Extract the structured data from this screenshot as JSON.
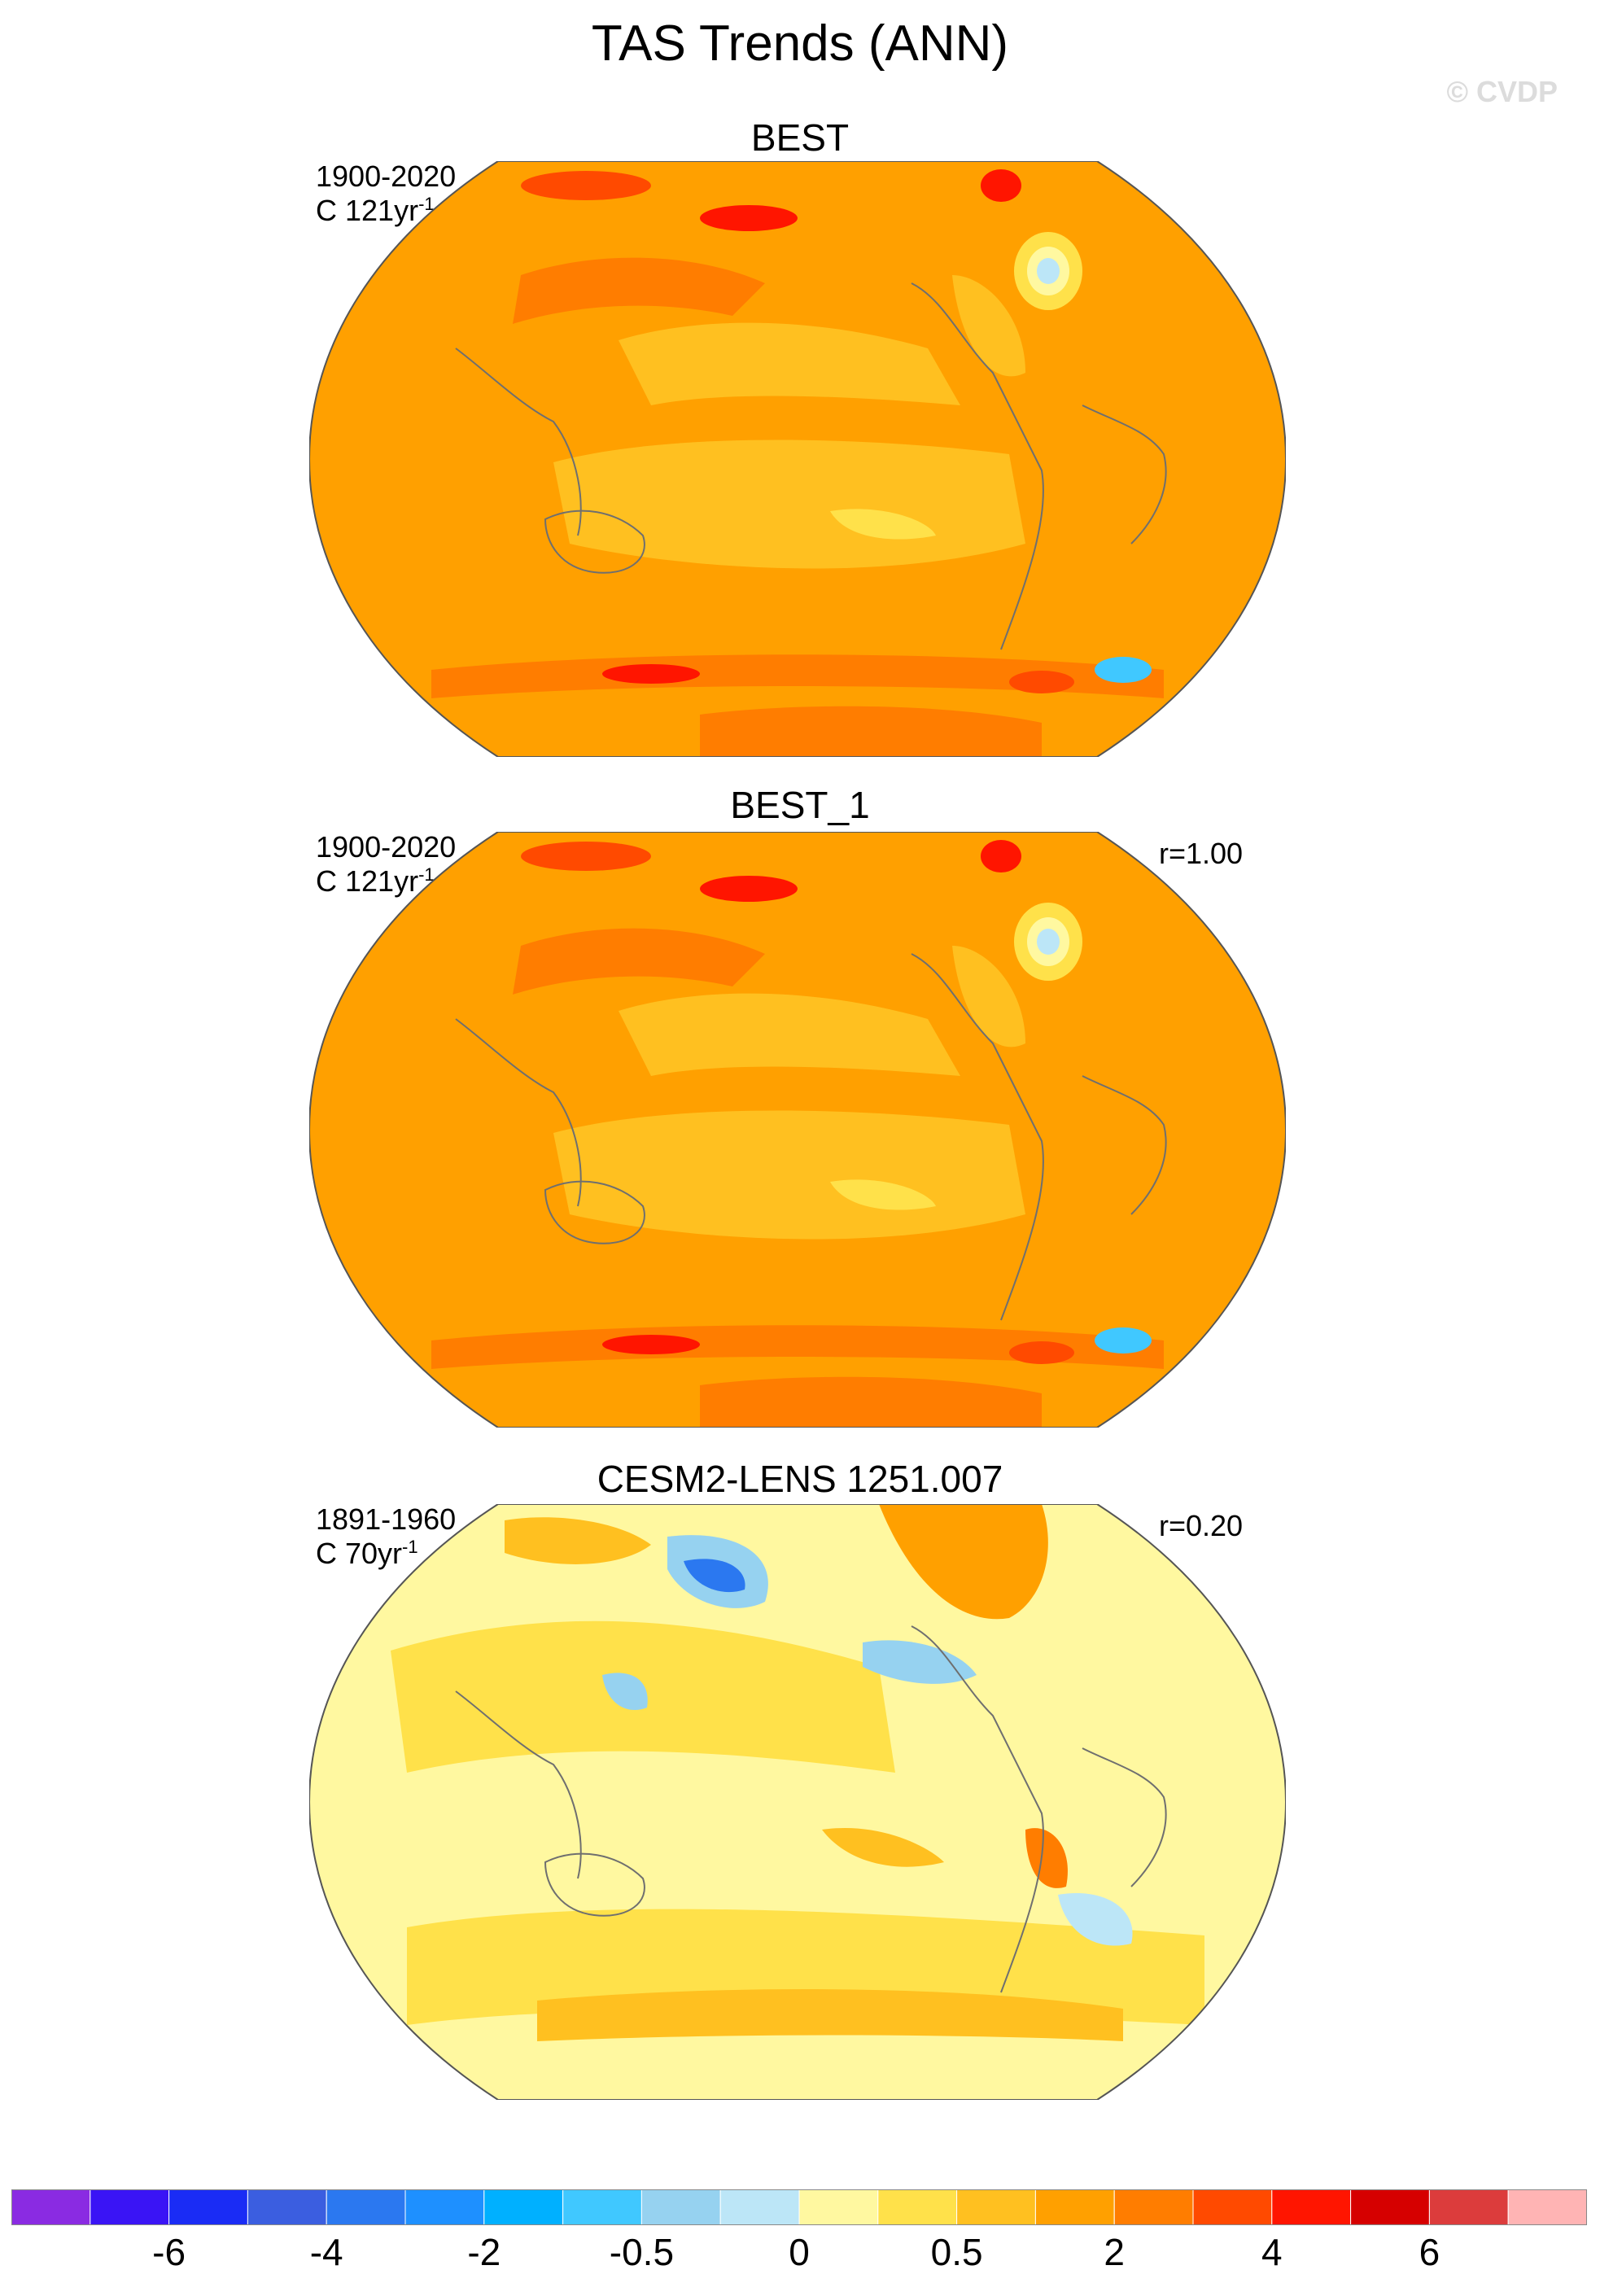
{
  "title": "TAS Trends (ANN)",
  "watermark": "© CVDP",
  "panels": [
    {
      "name": "BEST",
      "period": "1900-2020",
      "units_prefix": "C 121yr",
      "units_exp": "-1",
      "corr": ""
    },
    {
      "name": "BEST_1",
      "period": "1900-2020",
      "units_prefix": "C 121yr",
      "units_exp": "-1",
      "corr": "r=1.00"
    },
    {
      "name": "CESM2-LENS 1251.007",
      "period": "1891-1960",
      "units_prefix": "C 70yr",
      "units_exp": "-1",
      "corr": "r=0.20"
    }
  ],
  "colorbar": {
    "colors": [
      "#8a2be2",
      "#3a14f5",
      "#1a2cf5",
      "#3b5ee0",
      "#2b78f0",
      "#1e90ff",
      "#00b0ff",
      "#40c8ff",
      "#96d2f0",
      "#bce6f7",
      "#fff8a0",
      "#ffe14a",
      "#ffc020",
      "#ffa000",
      "#ff7d00",
      "#ff4a00",
      "#ff1500",
      "#d60000",
      "#dc3c3c",
      "#ffb4b4"
    ],
    "labels": [
      "-6",
      "-4",
      "-2",
      "-0.5",
      "0",
      "0.5",
      "2",
      "4",
      "6"
    ]
  },
  "palette": {
    "orange": "#ffa000",
    "gold": "#ffc020",
    "yellow": "#ffe14a",
    "pale": "#fff8a0",
    "lightblue": "#bce6f7",
    "blue": "#96d2f0",
    "red": "#ff4a00"
  }
}
